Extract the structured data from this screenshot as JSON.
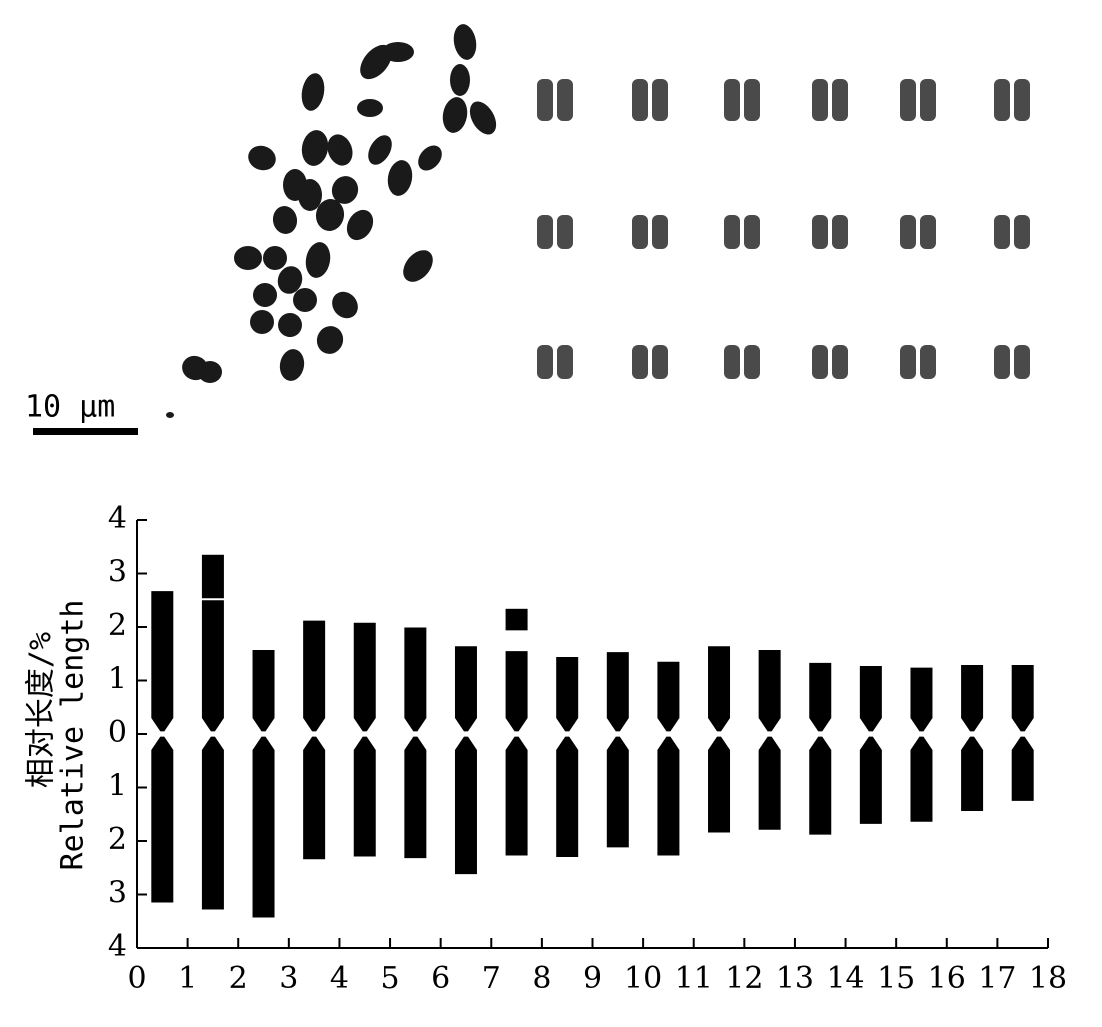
{
  "scale_bar": "10 μm",
  "chart_data": {
    "type": "idiogram",
    "ylabel": [
      "相对长度/%",
      "Relative length"
    ],
    "xlim": [
      0,
      18
    ],
    "xticks": [
      0,
      1,
      2,
      3,
      4,
      5,
      6,
      7,
      8,
      9,
      10,
      11,
      12,
      13,
      14,
      15,
      16,
      17,
      18
    ],
    "ylim": [
      -4,
      4
    ],
    "yticks": [
      {
        "value": -4,
        "label": "4"
      },
      {
        "value": -3,
        "label": "3"
      },
      {
        "value": -2,
        "label": "2"
      },
      {
        "value": -1,
        "label": "1"
      },
      0,
      1,
      2,
      3,
      4
    ],
    "x": [
      0.5,
      1.5,
      2.5,
      3.5,
      4.5,
      5.5,
      6.5,
      7.5,
      8.5,
      9.5,
      10.5,
      11.5,
      12.5,
      13.5,
      14.5,
      15.5,
      16.5,
      17.5
    ],
    "short_arm": [
      2.67,
      2.5,
      1.57,
      2.12,
      2.08,
      1.99,
      1.64,
      1.55,
      1.44,
      1.53,
      1.35,
      1.64,
      1.57,
      1.33,
      1.27,
      1.24,
      1.29,
      1.29
    ],
    "long_arm": [
      -3.15,
      -3.28,
      -3.43,
      -2.34,
      -2.29,
      -2.32,
      -2.62,
      -2.27,
      -2.3,
      -2.12,
      -2.27,
      -1.84,
      -1.79,
      -1.88,
      -1.68,
      -1.64,
      -1.44,
      -1.25
    ],
    "satellite_top": [
      null,
      3.35,
      null,
      null,
      null,
      null,
      null,
      2.34,
      null,
      null,
      null,
      null,
      null,
      null,
      null,
      null,
      null,
      null
    ],
    "satellite_bottom": [
      null,
      2.5,
      null,
      null,
      null,
      null,
      null,
      1.9,
      null,
      null,
      null,
      null,
      null,
      null,
      null,
      null,
      null,
      null
    ],
    "color": "#000000"
  }
}
